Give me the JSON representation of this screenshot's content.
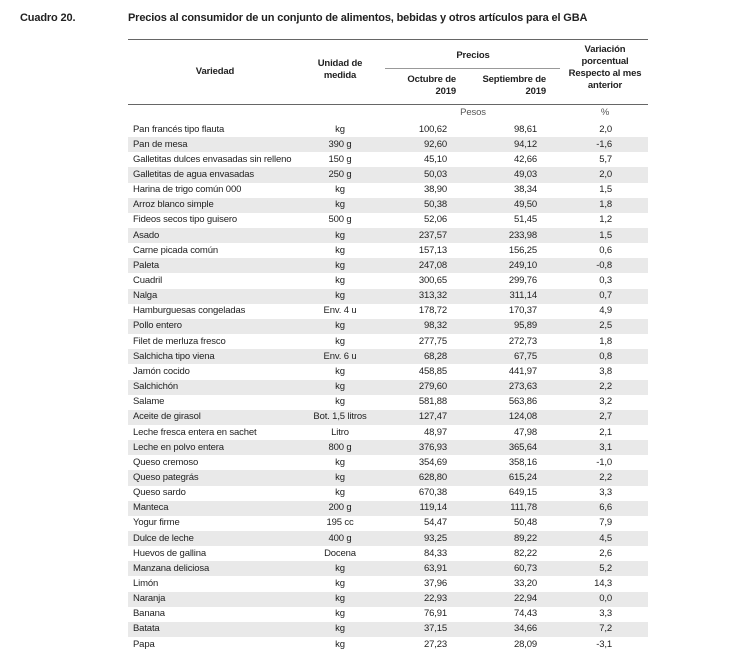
{
  "header": {
    "label": "Cuadro 20.",
    "title": "Precios al consumidor de un conjunto de alimentos, bebidas y otros artículos para el GBA"
  },
  "table": {
    "columns": {
      "variety": "Variedad",
      "unit": "Unidad de medida",
      "prices": "Precios",
      "october": "Octubre de 2019",
      "september": "Septiembre de 2019",
      "variation": "Variación porcentual Respecto al mes anterior"
    },
    "units": {
      "prices": "Pesos",
      "variation": "%"
    },
    "rows": [
      [
        "Pan francés tipo flauta",
        "kg",
        "100,62",
        "98,61",
        "2,0"
      ],
      [
        "Pan de mesa",
        "390 g",
        "92,60",
        "94,12",
        "-1,6"
      ],
      [
        "Galletitas dulces envasadas sin relleno",
        "150 g",
        "45,10",
        "42,66",
        "5,7"
      ],
      [
        "Galletitas de agua envasadas",
        "250 g",
        "50,03",
        "49,03",
        "2,0"
      ],
      [
        "Harina de trigo común 000",
        "kg",
        "38,90",
        "38,34",
        "1,5"
      ],
      [
        "Arroz blanco simple",
        "kg",
        "50,38",
        "49,50",
        "1,8"
      ],
      [
        "Fideos secos tipo guisero",
        "500 g",
        "52,06",
        "51,45",
        "1,2"
      ],
      [
        "Asado",
        "kg",
        "237,57",
        "233,98",
        "1,5"
      ],
      [
        "Carne picada común",
        "kg",
        "157,13",
        "156,25",
        "0,6"
      ],
      [
        "Paleta",
        "kg",
        "247,08",
        "249,10",
        "-0,8"
      ],
      [
        "Cuadril",
        "kg",
        "300,65",
        "299,76",
        "0,3"
      ],
      [
        "Nalga",
        "kg",
        "313,32",
        "311,14",
        "0,7"
      ],
      [
        "Hamburguesas congeladas",
        "Env. 4 u",
        "178,72",
        "170,37",
        "4,9"
      ],
      [
        "Pollo entero",
        "kg",
        "98,32",
        "95,89",
        "2,5"
      ],
      [
        "Filet de merluza fresco",
        "kg",
        "277,75",
        "272,73",
        "1,8"
      ],
      [
        "Salchicha tipo viena",
        "Env. 6 u",
        "68,28",
        "67,75",
        "0,8"
      ],
      [
        "Jamón cocido",
        "kg",
        "458,85",
        "441,97",
        "3,8"
      ],
      [
        "Salchichón",
        "kg",
        "279,60",
        "273,63",
        "2,2"
      ],
      [
        "Salame",
        "kg",
        "581,88",
        "563,86",
        "3,2"
      ],
      [
        "Aceite de girasol",
        "Bot. 1,5 litros",
        "127,47",
        "124,08",
        "2,7"
      ],
      [
        "Leche fresca entera en sachet",
        "Litro",
        "48,97",
        "47,98",
        "2,1"
      ],
      [
        "Leche en polvo entera",
        "800 g",
        "376,93",
        "365,64",
        "3,1"
      ],
      [
        "Queso cremoso",
        "kg",
        "354,69",
        "358,16",
        "-1,0"
      ],
      [
        "Queso pategrás",
        "kg",
        "628,80",
        "615,24",
        "2,2"
      ],
      [
        "Queso sardo",
        "kg",
        "670,38",
        "649,15",
        "3,3"
      ],
      [
        "Manteca",
        "200 g",
        "119,14",
        "111,78",
        "6,6"
      ],
      [
        "Yogur firme",
        "195 cc",
        "54,47",
        "50,48",
        "7,9"
      ],
      [
        "Dulce de leche",
        "400 g",
        "93,25",
        "89,22",
        "4,5"
      ],
      [
        "Huevos de gallina",
        "Docena",
        "84,33",
        "82,22",
        "2,6"
      ],
      [
        "Manzana deliciosa",
        "kg",
        "63,91",
        "60,73",
        "5,2"
      ],
      [
        "Limón",
        "kg",
        "37,96",
        "33,20",
        "14,3"
      ],
      [
        "Naranja",
        "kg",
        "22,93",
        "22,94",
        "0,0"
      ],
      [
        "Banana",
        "kg",
        "76,91",
        "74,43",
        "3,3"
      ],
      [
        "Batata",
        "kg",
        "37,15",
        "34,66",
        "7,2"
      ],
      [
        "Papa",
        "kg",
        "27,23",
        "28,09",
        "-3,1"
      ]
    ]
  }
}
